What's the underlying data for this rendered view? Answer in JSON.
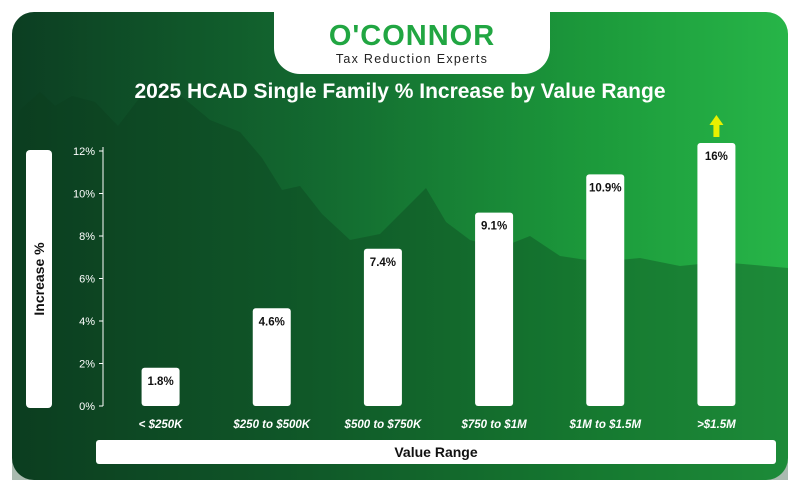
{
  "brand": {
    "name": "O'CONNOR",
    "tagline": "Tax Reduction Experts"
  },
  "chart_data": {
    "type": "bar",
    "title": "2025 HCAD Single Family % Increase by Value Range",
    "xlabel": "Value Range",
    "ylabel": "Increase %",
    "categories": [
      "< $250K",
      "$250 to $500K",
      "$500 to $750K",
      "$750 to $1M",
      "$1M to $1.5M",
      ">$1.5M"
    ],
    "values": [
      1.8,
      4.6,
      7.4,
      9.1,
      10.9,
      16
    ],
    "data_labels": [
      "1.8%",
      "4.6%",
      "7.4%",
      "9.1%",
      "10.9%",
      "16%"
    ],
    "ylim": [
      0,
      12
    ],
    "yticks": [
      0,
      2,
      4,
      6,
      8,
      10,
      12
    ],
    "ytick_labels": [
      "0%",
      "2%",
      "4%",
      "6%",
      "8%",
      "10%",
      "12%"
    ],
    "grid": false,
    "legend": "none",
    "colors": {
      "bar": "#ffffff",
      "background": "#136a30",
      "arrow": "#e8f000"
    }
  }
}
